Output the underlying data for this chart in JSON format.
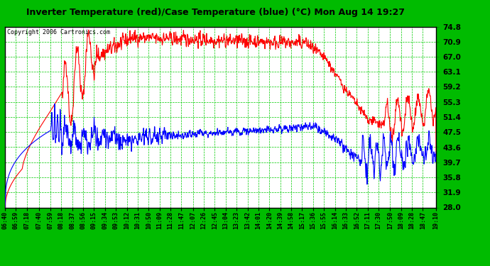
{
  "title": "Inverter Temperature (red)/Case Temperature (blue) (°C) Mon Aug 14 19:27",
  "copyright": "Copyright 2006 Cartronics.com",
  "ylabel_right": [
    "74.8",
    "70.9",
    "67.0",
    "63.1",
    "59.2",
    "55.3",
    "51.4",
    "47.5",
    "43.6",
    "39.7",
    "35.8",
    "31.9",
    "28.0"
  ],
  "ymin": 28.0,
  "ymax": 74.8,
  "bg_color": "#00bb00",
  "plot_bg": "#ffffff",
  "grid_color": "#00cc00",
  "red_color": "#ff0000",
  "blue_color": "#0000ff",
  "title_color": "#000000",
  "copyright_color": "#000000",
  "xtick_labels": [
    "06:40",
    "06:59",
    "07:18",
    "07:40",
    "07:59",
    "08:18",
    "08:37",
    "08:56",
    "09:15",
    "09:34",
    "09:53",
    "10:12",
    "10:31",
    "10:50",
    "11:09",
    "11:28",
    "11:47",
    "12:07",
    "12:26",
    "12:45",
    "13:04",
    "13:23",
    "13:42",
    "14:01",
    "14:20",
    "14:39",
    "14:58",
    "15:17",
    "15:36",
    "15:55",
    "16:14",
    "16:33",
    "16:52",
    "17:11",
    "17:30",
    "17:50",
    "18:09",
    "18:28",
    "18:47",
    "19:10"
  ]
}
